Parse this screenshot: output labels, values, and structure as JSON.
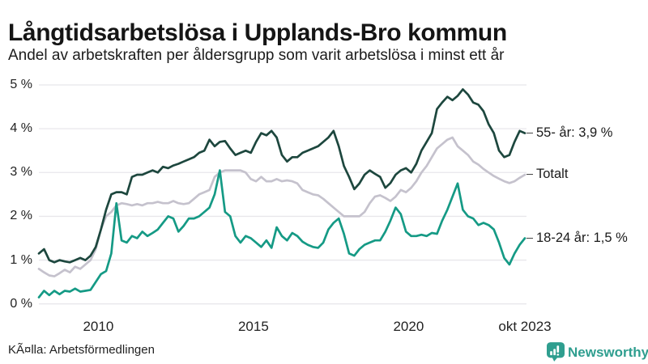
{
  "header": {
    "title": "Långtidsarbetslösa i Upplands-Bro kommun",
    "subtitle": "Andel av arbetskraften per åldersgrupp som varit arbetslösa i minst ett år"
  },
  "chart_data": {
    "type": "line",
    "title": "Långtidsarbetslösa i Upplands-Bro kommun",
    "subtitle": "Andel av arbetskraften per åldersgrupp som varit arbetslösa i minst ett år",
    "x_start": "2008-02",
    "x_end": "2023-10",
    "interval_months": 2,
    "ylim": [
      0,
      5
    ],
    "grid": "horizontal",
    "legend_position": "right-end-labels",
    "y_ticks": [
      {
        "label": "0 %",
        "value": 0
      },
      {
        "label": "1 %",
        "value": 1
      },
      {
        "label": "2 %",
        "value": 2
      },
      {
        "label": "3 %",
        "value": 3
      },
      {
        "label": "4 %",
        "value": 4
      },
      {
        "label": "5 %",
        "value": 5
      }
    ],
    "x_ticks": [
      {
        "label": "2010",
        "month_index": 23
      },
      {
        "label": "2015",
        "month_index": 83
      },
      {
        "label": "2020",
        "month_index": 143
      },
      {
        "label": "okt 2023",
        "month_index": 188
      }
    ],
    "series": [
      {
        "name": "Totalt",
        "slug": "totalt",
        "color": "#c5c2cd",
        "end_label": "Totalt",
        "values": [
          0.8,
          0.72,
          0.65,
          0.63,
          0.7,
          0.78,
          0.72,
          0.85,
          0.8,
          0.9,
          1.0,
          1.25,
          1.7,
          2.0,
          2.1,
          2.25,
          2.3,
          2.28,
          2.25,
          2.28,
          2.25,
          2.3,
          2.3,
          2.33,
          2.3,
          2.3,
          2.35,
          2.3,
          2.28,
          2.3,
          2.4,
          2.5,
          2.55,
          2.6,
          2.9,
          3.0,
          3.05,
          3.05,
          3.05,
          3.05,
          3.0,
          2.85,
          2.8,
          2.9,
          2.8,
          2.8,
          2.85,
          2.8,
          2.82,
          2.8,
          2.75,
          2.6,
          2.55,
          2.5,
          2.48,
          2.4,
          2.3,
          2.2,
          2.1,
          2.0,
          2.0,
          2.0,
          2.0,
          2.1,
          2.3,
          2.45,
          2.48,
          2.42,
          2.35,
          2.45,
          2.6,
          2.55,
          2.65,
          2.8,
          3.0,
          3.15,
          3.35,
          3.55,
          3.65,
          3.75,
          3.8,
          3.6,
          3.5,
          3.4,
          3.25,
          3.18,
          3.08,
          3.0,
          2.92,
          2.86,
          2.8,
          2.76,
          2.8,
          2.88,
          2.95
        ]
      },
      {
        "name": "55- år",
        "slug": "55-ar",
        "color": "#1d473e",
        "end_label": "55- år: 3,9 %",
        "values": [
          1.15,
          1.25,
          1.0,
          0.95,
          1.0,
          0.97,
          0.95,
          1.0,
          1.05,
          1.0,
          1.1,
          1.3,
          1.7,
          2.15,
          2.5,
          2.55,
          2.55,
          2.5,
          2.9,
          2.95,
          2.95,
          3.0,
          3.05,
          3.0,
          3.13,
          3.1,
          3.16,
          3.2,
          3.25,
          3.3,
          3.35,
          3.45,
          3.5,
          3.75,
          3.6,
          3.7,
          3.72,
          3.55,
          3.4,
          3.45,
          3.5,
          3.45,
          3.7,
          3.9,
          3.85,
          3.95,
          3.8,
          3.4,
          3.25,
          3.35,
          3.35,
          3.45,
          3.5,
          3.55,
          3.6,
          3.7,
          3.8,
          3.95,
          3.6,
          3.15,
          2.9,
          2.62,
          2.75,
          2.95,
          3.05,
          2.97,
          2.9,
          2.65,
          2.76,
          2.95,
          3.05,
          3.1,
          3.0,
          3.2,
          3.5,
          3.7,
          3.9,
          4.45,
          4.6,
          4.73,
          4.65,
          4.75,
          4.9,
          4.78,
          4.6,
          4.55,
          4.4,
          4.1,
          3.9,
          3.5,
          3.35,
          3.4,
          3.7,
          3.95,
          3.9
        ]
      },
      {
        "name": "18-24 år",
        "slug": "18-24-ar",
        "color": "#159a85",
        "end_label": "18-24 år: 1,5 %",
        "values": [
          0.15,
          0.3,
          0.2,
          0.3,
          0.22,
          0.3,
          0.28,
          0.35,
          0.28,
          0.3,
          0.32,
          0.5,
          0.68,
          0.75,
          1.15,
          2.3,
          1.45,
          1.4,
          1.55,
          1.5,
          1.65,
          1.55,
          1.62,
          1.7,
          1.85,
          2.0,
          1.95,
          1.65,
          1.78,
          1.95,
          1.95,
          2.0,
          2.1,
          2.2,
          2.5,
          3.05,
          2.1,
          2.0,
          1.55,
          1.4,
          1.55,
          1.5,
          1.4,
          1.3,
          1.45,
          1.28,
          1.75,
          1.55,
          1.45,
          1.62,
          1.55,
          1.42,
          1.35,
          1.3,
          1.28,
          1.4,
          1.7,
          1.85,
          1.95,
          1.6,
          1.15,
          1.1,
          1.25,
          1.35,
          1.4,
          1.45,
          1.45,
          1.65,
          1.9,
          2.2,
          2.05,
          1.65,
          1.55,
          1.55,
          1.58,
          1.55,
          1.62,
          1.6,
          1.9,
          2.15,
          2.45,
          2.75,
          2.15,
          2.0,
          1.95,
          1.8,
          1.85,
          1.8,
          1.7,
          1.4,
          1.05,
          0.9,
          1.15,
          1.35,
          1.5
        ]
      }
    ]
  },
  "footer": {
    "source": "KÃ¤lla: Arbetsförmedlingen",
    "brand": "Newsworthy",
    "brand_color": "#2f9e8f"
  }
}
